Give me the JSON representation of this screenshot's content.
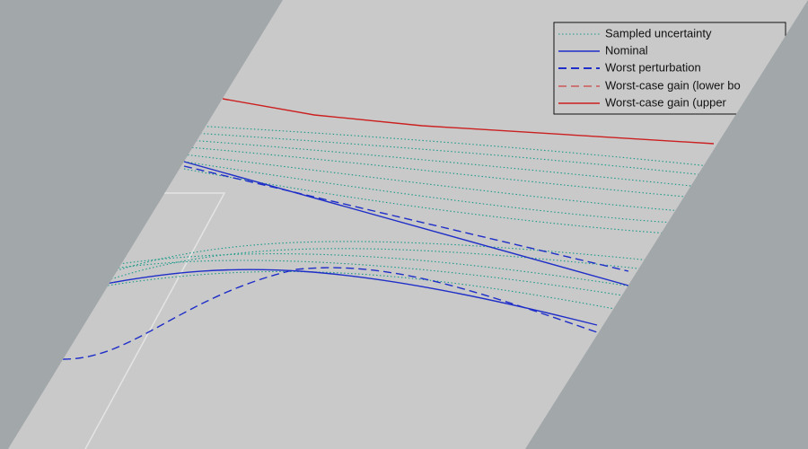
{
  "legend": {
    "items": [
      "Sampled uncertainty",
      "Nominal",
      "Worst perturbation",
      "Worst-case gain (lower bo",
      "Worst-case gain (upper"
    ]
  }
}
